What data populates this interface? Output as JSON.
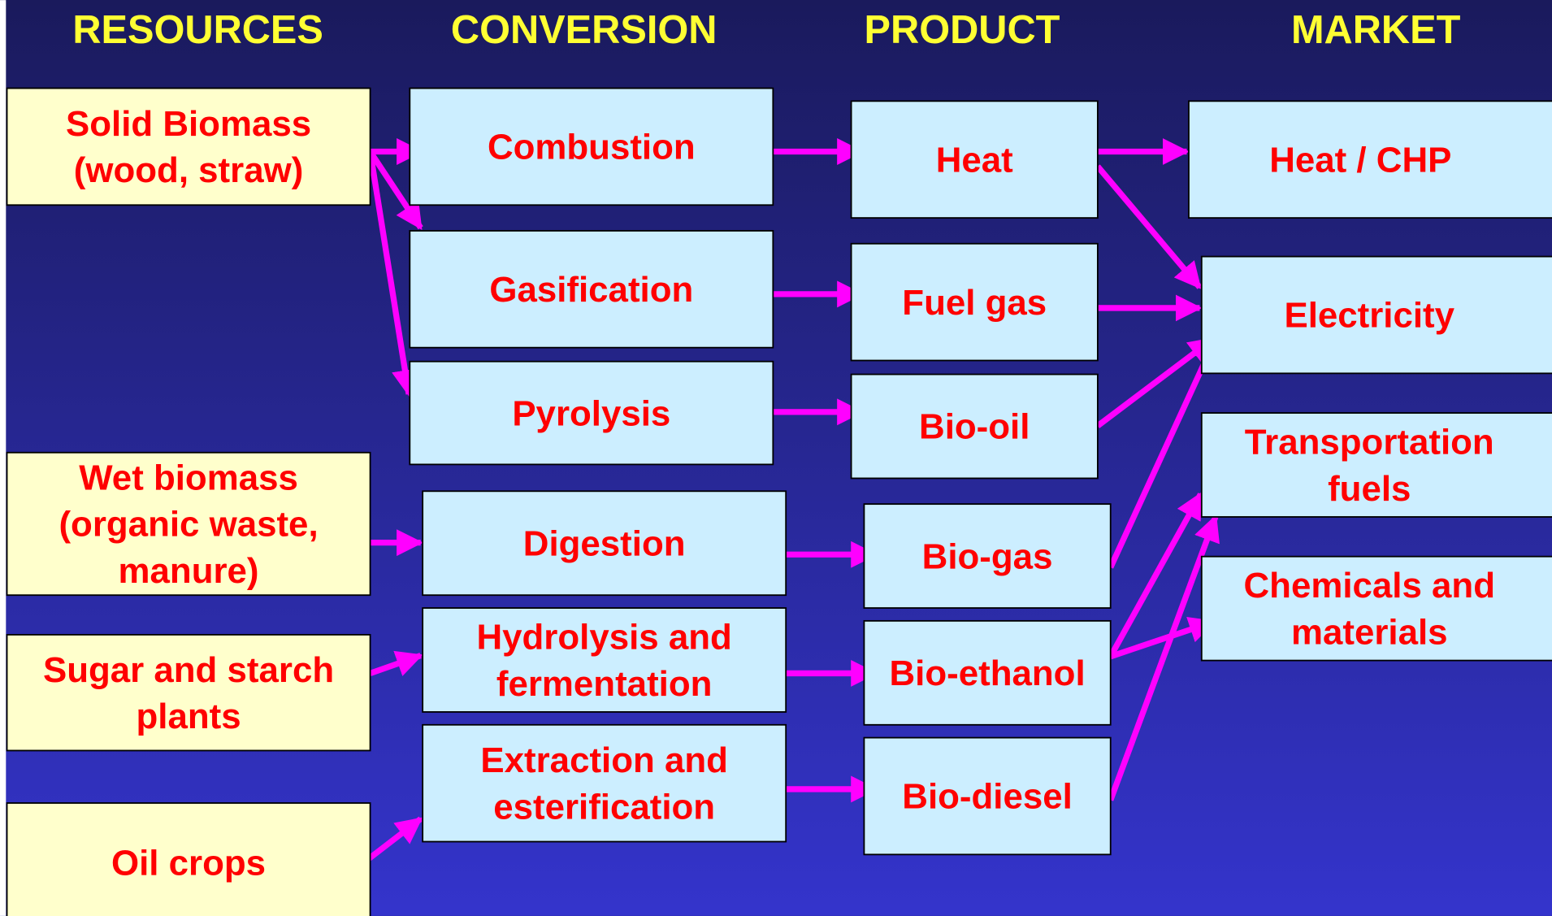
{
  "headers": [
    "RESOURCES",
    "CONVERSION",
    "PRODUCT",
    "MARKET"
  ],
  "nodes": [
    {
      "lines": [
        "Solid Biomass",
        "(wood, straw)"
      ]
    },
    {
      "lines": [
        "Wet biomass",
        "(organic waste,",
        "manure)"
      ]
    },
    {
      "lines": [
        "Sugar and starch",
        "plants"
      ]
    },
    {
      "lines": [
        "Oil crops"
      ]
    },
    {
      "lines": [
        "Combustion"
      ]
    },
    {
      "lines": [
        "Gasification"
      ]
    },
    {
      "lines": [
        "Pyrolysis"
      ]
    },
    {
      "lines": [
        "Digestion"
      ]
    },
    {
      "lines": [
        "Hydrolysis and",
        "fermentation"
      ]
    },
    {
      "lines": [
        "Extraction and",
        "esterification"
      ]
    },
    {
      "lines": [
        "Heat"
      ]
    },
    {
      "lines": [
        "Fuel gas"
      ]
    },
    {
      "lines": [
        "Bio-oil"
      ]
    },
    {
      "lines": [
        "Bio-gas"
      ]
    },
    {
      "lines": [
        "Bio-ethanol"
      ]
    },
    {
      "lines": [
        "Bio-diesel"
      ]
    },
    {
      "lines": [
        "Heat / CHP"
      ]
    },
    {
      "lines": [
        "Electricity"
      ]
    },
    {
      "lines": [
        "Transportation",
        "fuels"
      ]
    },
    {
      "lines": [
        "Chemicals and",
        "materials"
      ]
    }
  ]
}
